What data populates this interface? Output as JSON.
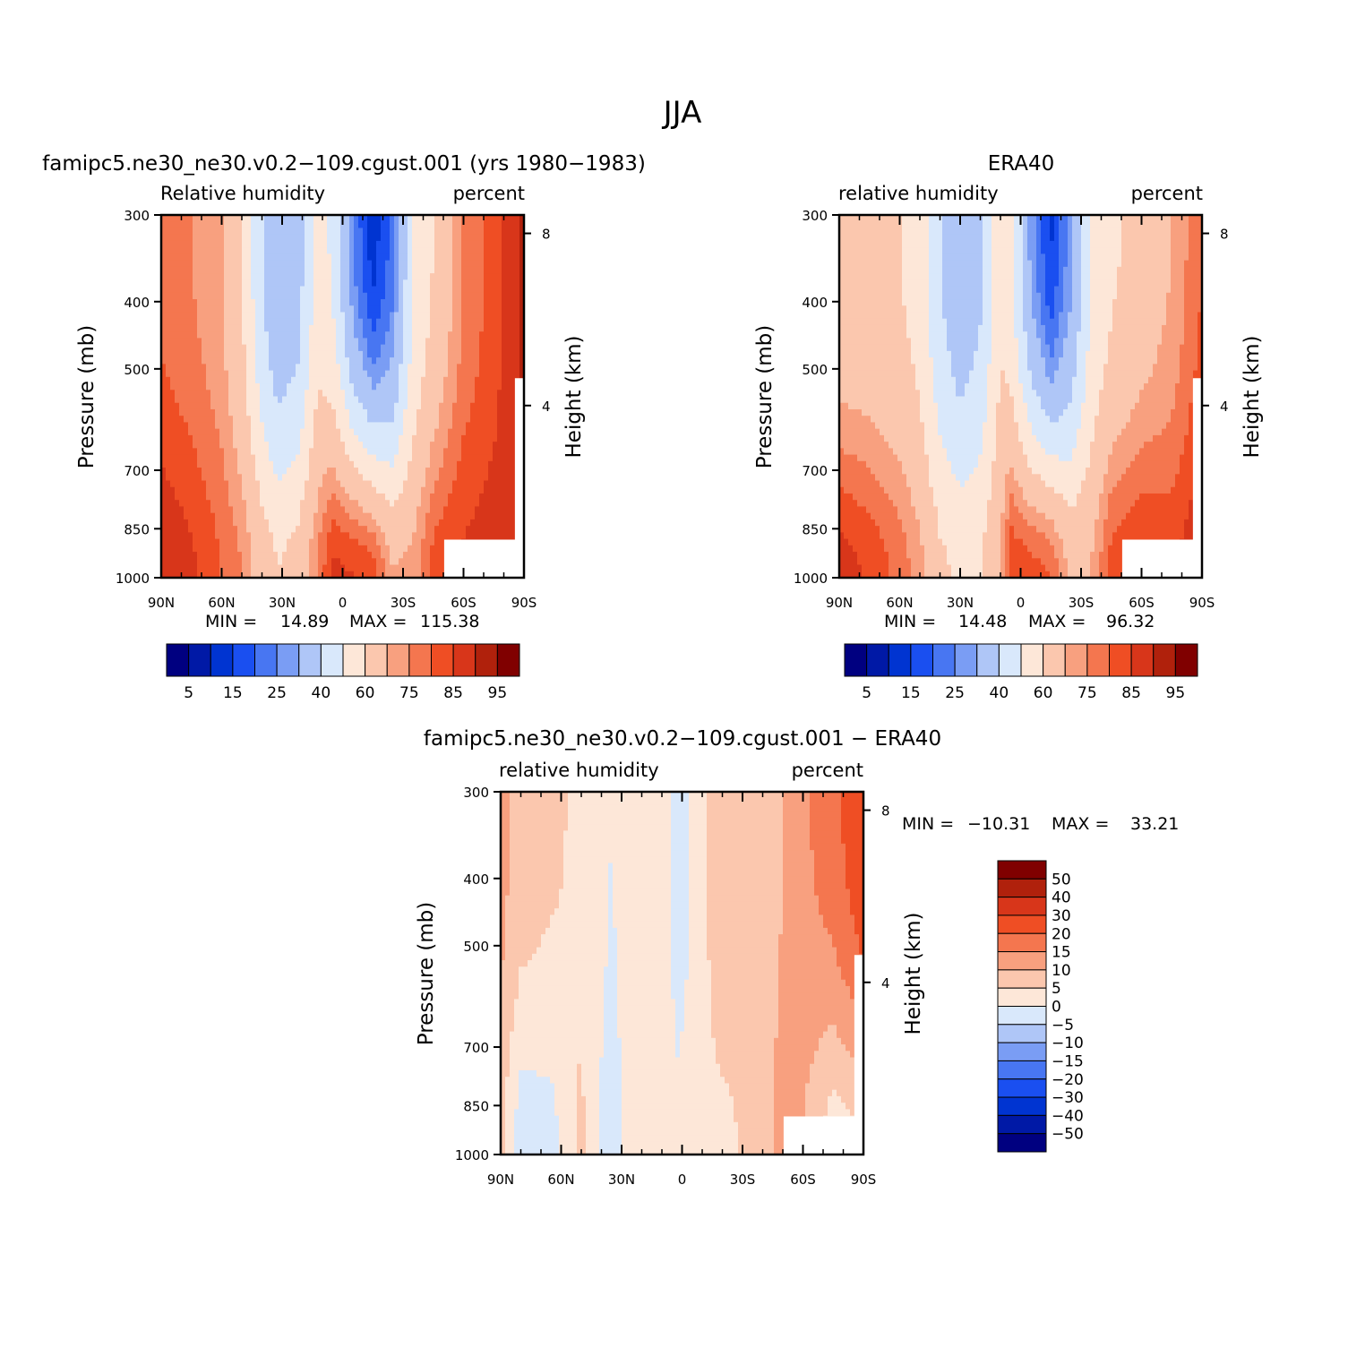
{
  "figure": {
    "title": "JJA"
  },
  "colors": {
    "rh_levels": [
      "#000080",
      "#0019a6",
      "#0034d1",
      "#1a4ff0",
      "#4876f2",
      "#7a9df4",
      "#afc6f7",
      "#d9e8fb",
      "#fde7d8",
      "#fbc7ae",
      "#f8a07f",
      "#f4764f",
      "#ef4e24",
      "#d8361a",
      "#b0210c",
      "#800000"
    ],
    "diff_levels": [
      "#000080",
      "#0019a6",
      "#0034d1",
      "#1a4ff0",
      "#4876f2",
      "#7a9df4",
      "#afc6f7",
      "#d9e8fb",
      "#fde7d8",
      "#fbc7ae",
      "#f8a07f",
      "#f4764f",
      "#ef4e24",
      "#d8361a",
      "#b0210c",
      "#800000"
    ]
  },
  "chart_data": [
    {
      "type": "heatmap",
      "title": "famipc5.ne30_ne30.v0.2−109.cgust.001 (yrs 1980−1983)",
      "left_label": "Relative humidity",
      "right_label": "percent",
      "ylabel": "Pressure (mb)",
      "y2label": "Height (km)",
      "x_ticks": [
        "90N",
        "60N",
        "30N",
        "0",
        "30S",
        "60S",
        "90S"
      ],
      "y_ticks": [
        "300",
        "400",
        "500",
        "700",
        "850",
        "1000"
      ],
      "y2_ticks": [
        "8",
        "4"
      ],
      "ylim": [
        1000,
        300
      ],
      "min_label": "MIN =",
      "min_value": "14.89",
      "max_label": "MAX =",
      "max_value": "115.38",
      "colorbar_labels": [
        "5",
        "15",
        "25",
        "40",
        "60",
        "75",
        "85",
        "95"
      ],
      "zones": [
        {
          "lat": 90,
          "u": 78,
          "l": 90
        },
        {
          "lat": 75,
          "u": 75,
          "l": 86
        },
        {
          "lat": 60,
          "u": 70,
          "l": 80
        },
        {
          "lat": 50,
          "u": 60,
          "l": 75
        },
        {
          "lat": 40,
          "u": 40,
          "l": 66
        },
        {
          "lat": 32,
          "u": 30,
          "l": 60
        },
        {
          "lat": 22,
          "u": 35,
          "l": 64
        },
        {
          "lat": 12,
          "u": 55,
          "l": 76
        },
        {
          "lat": 5,
          "u": 48,
          "l": 86
        },
        {
          "lat": -5,
          "u": 25,
          "l": 85
        },
        {
          "lat": -15,
          "u": 12,
          "l": 82
        },
        {
          "lat": -25,
          "u": 22,
          "l": 70
        },
        {
          "lat": -35,
          "u": 50,
          "l": 72
        },
        {
          "lat": -45,
          "u": 60,
          "l": 82
        },
        {
          "lat": -60,
          "u": 75,
          "l": 86
        },
        {
          "lat": -75,
          "u": 82,
          "l": 88
        },
        {
          "lat": -90,
          "u": 92,
          "l": 90
        }
      ]
    },
    {
      "type": "heatmap",
      "title": "ERA40",
      "left_label": "relative humidity",
      "right_label": "percent",
      "ylabel": "Pressure (mb)",
      "y2label": "Height (km)",
      "x_ticks": [
        "90N",
        "60N",
        "30N",
        "0",
        "30S",
        "60S",
        "90S"
      ],
      "y_ticks": [
        "300",
        "400",
        "500",
        "700",
        "850",
        "1000"
      ],
      "y2_ticks": [
        "8",
        "4"
      ],
      "ylim": [
        1000,
        300
      ],
      "min_label": "MIN =",
      "min_value": "14.48",
      "max_label": "MAX =",
      "max_value": "96.32",
      "colorbar_labels": [
        "5",
        "15",
        "25",
        "40",
        "60",
        "75",
        "85",
        "95"
      ],
      "zones": [
        {
          "lat": 90,
          "u": 62,
          "l": 88
        },
        {
          "lat": 75,
          "u": 62,
          "l": 84
        },
        {
          "lat": 60,
          "u": 60,
          "l": 78
        },
        {
          "lat": 50,
          "u": 55,
          "l": 72
        },
        {
          "lat": 40,
          "u": 40,
          "l": 62
        },
        {
          "lat": 30,
          "u": 32,
          "l": 58
        },
        {
          "lat": 20,
          "u": 38,
          "l": 60
        },
        {
          "lat": 10,
          "u": 58,
          "l": 70
        },
        {
          "lat": 5,
          "u": 52,
          "l": 84
        },
        {
          "lat": -5,
          "u": 28,
          "l": 82
        },
        {
          "lat": -15,
          "u": 14,
          "l": 80
        },
        {
          "lat": -25,
          "u": 28,
          "l": 68
        },
        {
          "lat": -35,
          "u": 50,
          "l": 70
        },
        {
          "lat": -45,
          "u": 58,
          "l": 82
        },
        {
          "lat": -60,
          "u": 64,
          "l": 86
        },
        {
          "lat": -75,
          "u": 70,
          "l": 84
        },
        {
          "lat": -90,
          "u": 80,
          "l": 90
        }
      ]
    },
    {
      "type": "heatmap",
      "title": "famipc5.ne30_ne30.v0.2−109.cgust.001 − ERA40",
      "left_label": "relative humidity",
      "right_label": "percent",
      "ylabel": "Pressure (mb)",
      "y2label": "Height (km)",
      "x_ticks": [
        "90N",
        "60N",
        "30N",
        "0",
        "30S",
        "60S",
        "90S"
      ],
      "y_ticks": [
        "300",
        "400",
        "500",
        "700",
        "850",
        "1000"
      ],
      "y2_ticks": [
        "8",
        "4"
      ],
      "ylim": [
        1000,
        300
      ],
      "min_label": "MIN =",
      "min_value": "−10.31",
      "max_label": "MAX =",
      "max_value": "33.21",
      "colorbar_labels": [
        "50",
        "40",
        "30",
        "20",
        "15",
        "10",
        "5",
        "0",
        "−5",
        "−10",
        "−15",
        "−20",
        "−30",
        "−40",
        "−50"
      ],
      "zones": [
        {
          "lat": 90,
          "u": 12,
          "l": 6
        },
        {
          "lat": 80,
          "u": 8,
          "l": -3
        },
        {
          "lat": 65,
          "u": 6,
          "l": -2
        },
        {
          "lat": 50,
          "u": 4,
          "l": 6
        },
        {
          "lat": 35,
          "u": 0,
          "l": -4
        },
        {
          "lat": 25,
          "u": 3,
          "l": 4
        },
        {
          "lat": 10,
          "u": 3,
          "l": 5
        },
        {
          "lat": 2,
          "u": -4,
          "l": 2
        },
        {
          "lat": -10,
          "u": 4,
          "l": 4
        },
        {
          "lat": -20,
          "u": 8,
          "l": 4
        },
        {
          "lat": -35,
          "u": 6,
          "l": 6
        },
        {
          "lat": -50,
          "u": 10,
          "l": 12
        },
        {
          "lat": -60,
          "u": 14,
          "l": 10
        },
        {
          "lat": -75,
          "u": 18,
          "l": 2
        },
        {
          "lat": -90,
          "u": 25,
          "l": 4
        }
      ]
    }
  ]
}
